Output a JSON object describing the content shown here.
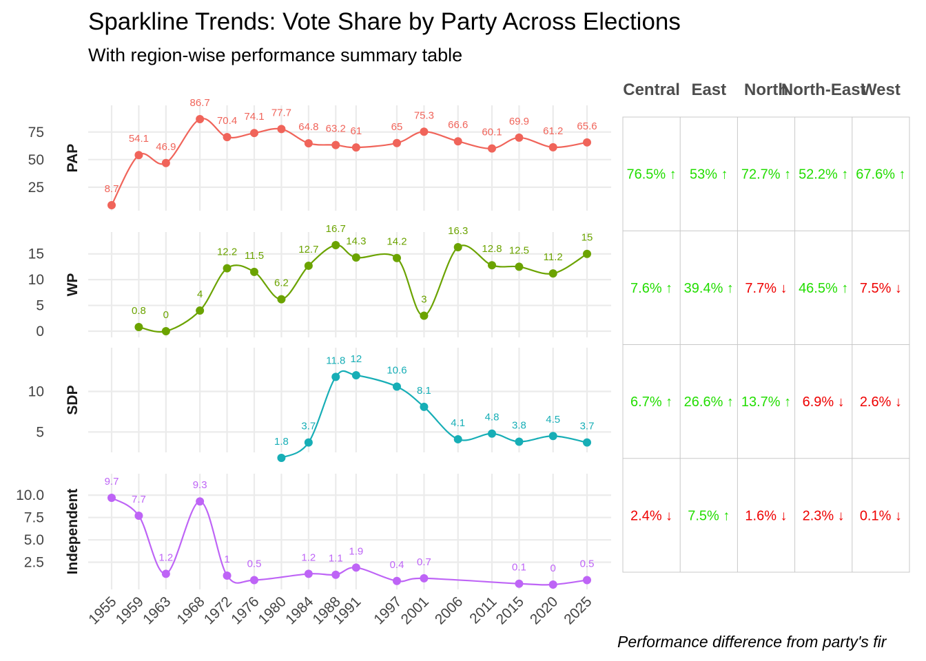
{
  "title": "Sparkline Trends: Vote Share by Party Across Elections",
  "subtitle": "With region-wise performance summary table",
  "caption": "Performance difference from party's fir",
  "colors": {
    "PAP": "#F0645A",
    "WP": "#6BA300",
    "SDP": "#17AEB6",
    "Independent": "#BE64F6",
    "up": "#22DD00",
    "down": "#EE0000"
  },
  "chart_data": {
    "type": "line",
    "x": [
      "1955",
      "1959",
      "1963",
      "1968",
      "1972",
      "1976",
      "1980",
      "1984",
      "1988",
      "1991",
      "1997",
      "2001",
      "2006",
      "2011",
      "2015",
      "2020",
      "2025"
    ],
    "grid": true,
    "facets": [
      {
        "name": "PAP",
        "yticks": [
          "25",
          "50",
          "75"
        ],
        "ylim": [
          8.7,
          86.7
        ],
        "values": [
          8.7,
          54.1,
          46.9,
          86.7,
          70.4,
          74.1,
          77.7,
          64.8,
          63.2,
          61,
          65,
          75.3,
          66.6,
          60.1,
          69.9,
          61.2,
          65.6
        ]
      },
      {
        "name": "WP",
        "yticks": [
          "0",
          "5",
          "10",
          "15"
        ],
        "ylim": [
          0,
          16.7
        ],
        "values": [
          null,
          0.8,
          0,
          4,
          12.2,
          11.5,
          6.2,
          12.7,
          16.7,
          14.3,
          14.2,
          3,
          16.3,
          12.8,
          12.5,
          11.2,
          15
        ]
      },
      {
        "name": "SDP",
        "yticks": [
          "5",
          "10"
        ],
        "ylim": [
          1.8,
          12
        ],
        "values": [
          null,
          null,
          null,
          null,
          null,
          null,
          1.8,
          3.7,
          11.8,
          12,
          10.6,
          8.1,
          4.1,
          4.8,
          3.8,
          4.5,
          3.7
        ]
      },
      {
        "name": "Independent",
        "yticks": [
          "2.5",
          "5.0",
          "7.5",
          "10.0"
        ],
        "ylim": [
          0,
          9.7
        ],
        "values": [
          9.7,
          7.7,
          1.2,
          9.3,
          1,
          0.5,
          null,
          1.2,
          1.1,
          1.9,
          0.4,
          0.7,
          null,
          null,
          0.1,
          0,
          0.5
        ]
      }
    ]
  },
  "table": {
    "columns": [
      "Central",
      "East",
      "North",
      "North-East",
      "West"
    ],
    "rows": [
      {
        "party": "PAP",
        "cells": [
          {
            "text": "76.5% ↑",
            "dir": "up"
          },
          {
            "text": "53% ↑",
            "dir": "up"
          },
          {
            "text": "72.7% ↑",
            "dir": "up"
          },
          {
            "text": "52.2% ↑",
            "dir": "up"
          },
          {
            "text": "67.6% ↑",
            "dir": "up"
          }
        ]
      },
      {
        "party": "WP",
        "cells": [
          {
            "text": "7.6% ↑",
            "dir": "up"
          },
          {
            "text": "39.4% ↑",
            "dir": "up"
          },
          {
            "text": "7.7% ↓",
            "dir": "down"
          },
          {
            "text": "46.5% ↑",
            "dir": "up"
          },
          {
            "text": "7.5% ↓",
            "dir": "down"
          }
        ]
      },
      {
        "party": "SDP",
        "cells": [
          {
            "text": "6.7% ↑",
            "dir": "up"
          },
          {
            "text": "26.6% ↑",
            "dir": "up"
          },
          {
            "text": "13.7% ↑",
            "dir": "up"
          },
          {
            "text": "6.9% ↓",
            "dir": "down"
          },
          {
            "text": "2.6% ↓",
            "dir": "down"
          }
        ]
      },
      {
        "party": "Independent",
        "cells": [
          {
            "text": "2.4% ↓",
            "dir": "down"
          },
          {
            "text": "7.5% ↑",
            "dir": "up"
          },
          {
            "text": "1.6% ↓",
            "dir": "down"
          },
          {
            "text": "2.3% ↓",
            "dir": "down"
          },
          {
            "text": "0.1% ↓",
            "dir": "down"
          }
        ]
      }
    ]
  }
}
